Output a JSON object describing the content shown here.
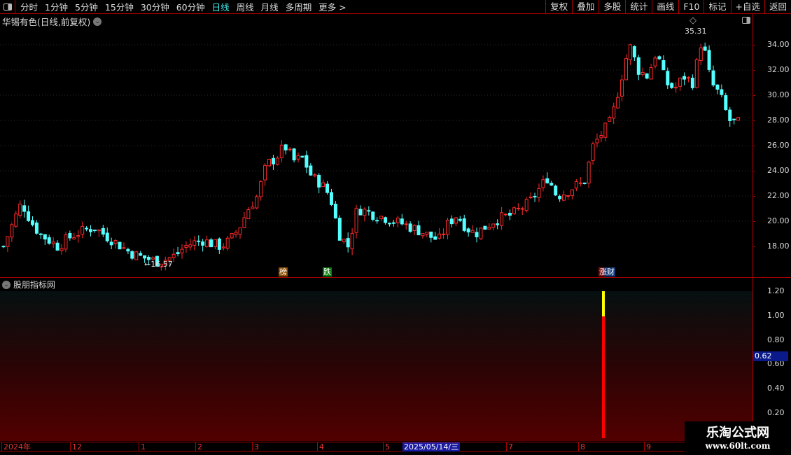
{
  "toolbar": {
    "periods": [
      "分时",
      "1分钟",
      "5分钟",
      "15分钟",
      "30分钟",
      "60分钟",
      "日线",
      "周线",
      "月线",
      "多周期",
      "更多 >"
    ],
    "active": "日线",
    "right_buttons": [
      "复权",
      "叠加",
      "多股",
      "统计",
      "画线",
      "F10",
      "标记",
      "+自选",
      "返回"
    ]
  },
  "main": {
    "title": "华锡有色(日线,前复权)",
    "high_label": "35.31",
    "low_label": "16.57",
    "y_labels": [
      "34.00",
      "32.00",
      "30.00",
      "28.00",
      "26.00",
      "24.00",
      "22.00",
      "20.00",
      "18.00"
    ],
    "markers": [
      {
        "text": "榜",
        "color": "#8a4a00"
      },
      {
        "text": "跌",
        "color": "#0a7a10"
      },
      {
        "text": "涨财",
        "color": "#123a7a"
      }
    ],
    "closes": [
      18,
      19.8,
      21.5,
      20,
      19,
      18.5,
      18,
      18.6,
      19,
      19.3,
      19.5,
      19,
      18.5,
      18,
      17.5,
      17.2,
      17,
      16.8,
      17,
      17.3,
      18,
      18.3,
      18.5,
      18.2,
      18,
      18.5,
      19.5,
      21,
      22,
      24.5,
      25,
      26,
      24.8,
      25,
      23.5,
      23,
      22,
      19,
      18,
      21,
      20.8,
      20.5,
      20.3,
      20,
      19.8,
      19.5,
      19.2,
      18.8,
      18.5,
      19.8,
      20.5,
      19.5,
      19,
      19.5,
      20,
      20.3,
      20.5,
      21,
      21.5,
      22.5,
      23.5,
      22,
      22.3,
      22.8,
      23,
      26,
      27,
      28,
      31,
      34,
      32,
      31.5,
      33.5,
      31,
      30.5,
      31.5,
      31,
      34.5,
      31,
      30,
      28,
      27.8
    ],
    "up_color": "#ff2a2a",
    "down_color": "#54ffff"
  },
  "indicator": {
    "title": "股朋指标网",
    "y_labels": [
      "1.20",
      "1.00",
      "0.80",
      "0.60",
      "0.40",
      "0.20"
    ],
    "current_value": "0.62",
    "signal": {
      "red_value": 1.0,
      "yellow_value": 1.2
    }
  },
  "dates": {
    "labels": [
      "2024年",
      "12",
      "1",
      "2",
      "3",
      "4",
      "5",
      "7",
      "8",
      "9"
    ],
    "selected": "2025/05/14/三"
  },
  "watermark": {
    "title": "乐淘公式网",
    "url": "www.60lt.com"
  }
}
